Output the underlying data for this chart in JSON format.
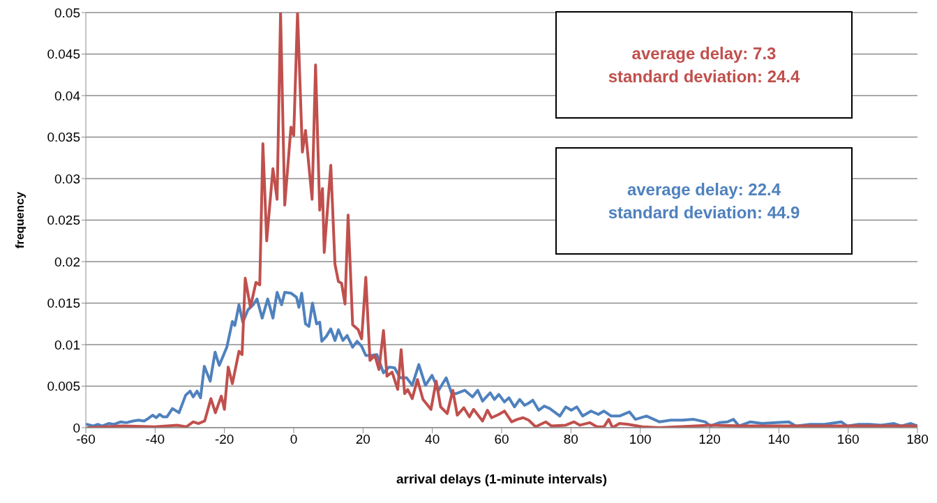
{
  "chart_data": {
    "type": "line",
    "xlabel": "arrival delays (1-minute intervals)",
    "ylabel": "frequency",
    "annotations": [
      "average delay: 7.3\nstandard deviation: 24.4",
      "average delay: 22.4\nstandard deviation: 44.9"
    ],
    "xlim": [
      -60,
      180
    ],
    "xticks": [
      -60,
      -40,
      -20,
      0,
      20,
      40,
      60,
      80,
      100,
      120,
      140,
      160,
      180
    ],
    "ylim": [
      0,
      0.05
    ],
    "yticks": [
      0,
      0.005,
      0.01,
      0.015,
      0.02,
      0.025,
      0.03,
      0.035,
      0.04,
      0.045,
      0.05
    ],
    "grid": "y",
    "legend": false,
    "series": [
      {
        "color": "#c0504d",
        "x": [
          -59.4,
          -49.6,
          -40,
          -33.7,
          -31,
          -29,
          -27.5,
          -25.7,
          -23.9,
          -22.6,
          -20.9,
          -20,
          -18.9,
          -17.7,
          -15.8,
          -14.9,
          -14,
          -12.5,
          -10.9,
          -9.8,
          -8.9,
          -7.8,
          -6,
          -4.8,
          -3.8,
          -2.6,
          -0.8,
          0,
          1.1,
          2.5,
          3.4,
          5.3,
          6.3,
          7.5,
          8.3,
          8.8,
          10.7,
          11.9,
          12.9,
          13.8,
          14.8,
          15.7,
          17,
          18.6,
          19.6,
          20.8,
          22,
          23.4,
          24.6,
          25.9,
          26.9,
          28.4,
          30,
          31,
          32,
          32.9,
          34.2,
          35.7,
          37.3,
          39.6,
          41.1,
          42.4,
          44.3,
          45.9,
          47.2,
          49.1,
          50.7,
          51.9,
          54.5,
          55.9,
          57.1,
          59.2,
          60.8,
          62.9,
          64.5,
          66.2,
          67.8,
          69.8,
          72.7,
          74.4,
          78.5,
          80.9,
          82.6,
          85.4,
          87.5,
          89.5,
          90.9,
          92,
          94,
          96.5,
          100.6,
          105.5,
          120.3,
          130.1,
          180
        ],
        "values": [
          0,
          0.0002,
          0.0001,
          0.0003,
          0.0001,
          0.0007,
          0.0005,
          0.0008,
          0.0035,
          0.0018,
          0.0038,
          0.0022,
          0.0073,
          0.0053,
          0.0092,
          0.0088,
          0.018,
          0.0145,
          0.0175,
          0.0172,
          0.0342,
          0.0225,
          0.0312,
          0.0275,
          0.05,
          0.0268,
          0.0362,
          0.0352,
          0.05,
          0.0332,
          0.0358,
          0.0275,
          0.0437,
          0.0262,
          0.0288,
          0.0211,
          0.0316,
          0.0197,
          0.0176,
          0.0174,
          0.0149,
          0.0256,
          0.0124,
          0.0118,
          0.0107,
          0.0181,
          0.0081,
          0.0087,
          0.007,
          0.0117,
          0.0062,
          0.0067,
          0.0046,
          0.0094,
          0.0041,
          0.0046,
          0.0035,
          0.0058,
          0.0034,
          0.0022,
          0.0056,
          0.0025,
          0.0017,
          0.0045,
          0.0015,
          0.0024,
          0.0013,
          0.0022,
          0.0008,
          0.0021,
          0.0012,
          0.0016,
          0.002,
          0.0007,
          0.001,
          0.0012,
          0.0009,
          0.0001,
          0.0007,
          0.0002,
          0.0003,
          0.0007,
          0.0003,
          0.0006,
          0.0001,
          0.0001,
          0.001,
          0,
          0.0005,
          0.0004,
          0.0001,
          0,
          0.0003,
          0.0002,
          0.0002
        ]
      },
      {
        "color": "#4f81bd",
        "x": [
          -59.7,
          -57.8,
          -56.5,
          -55.3,
          -53.4,
          -51.8,
          -49.9,
          -48.3,
          -46.4,
          -44.8,
          -43.2,
          -42,
          -40.7,
          -39.7,
          -38.7,
          -37.7,
          -36.6,
          -35,
          -33.1,
          -31.2,
          -29.9,
          -29,
          -27.9,
          -26.9,
          -25.8,
          -24.1,
          -22.7,
          -21.5,
          -19.3,
          -17.7,
          -17,
          -15.8,
          -14.7,
          -13.2,
          -11.7,
          -10.6,
          -9.1,
          -7.5,
          -6,
          -4.8,
          -3.5,
          -2.6,
          -0.8,
          0.8,
          1.5,
          2.3,
          3.4,
          4.4,
          5.4,
          6.6,
          7.5,
          8.1,
          9.4,
          10.7,
          11.9,
          12.9,
          14.2,
          15.4,
          17,
          18.3,
          19.6,
          20.8,
          22.4,
          24,
          25.9,
          27.5,
          29.1,
          30.7,
          32.6,
          34.2,
          36.1,
          38,
          39.9,
          41.8,
          44,
          45.6,
          46.9,
          49.4,
          51.6,
          53.1,
          54.5,
          56.7,
          57.9,
          59.2,
          60.8,
          62.1,
          63.7,
          65.2,
          66.6,
          67.6,
          69,
          70.7,
          72.3,
          73.9,
          76.8,
          78.5,
          80.1,
          81.7,
          83.4,
          85.8,
          87.9,
          89.5,
          91.6,
          94,
          96.9,
          98.6,
          101.8,
          105.5,
          108.8,
          112.1,
          115.4,
          118.7,
          120.3,
          122.8,
          125.2,
          126.9,
          128.5,
          131.8,
          135.1,
          139.2,
          142.9,
          144.9,
          149,
          153.1,
          158,
          159.7,
          163,
          166.2,
          169.5,
          173.2,
          175.3,
          178.1,
          180
        ],
        "values": [
          0.0004,
          0.0002,
          0.0004,
          0.0002,
          0.0005,
          0.0004,
          0.0007,
          0.0006,
          0.0008,
          0.0009,
          0.0008,
          0.0011,
          0.0015,
          0.0012,
          0.0016,
          0.0013,
          0.0013,
          0.0023,
          0.0018,
          0.0039,
          0.0044,
          0.0037,
          0.0044,
          0.0036,
          0.0074,
          0.0056,
          0.0091,
          0.0075,
          0.0097,
          0.0128,
          0.0123,
          0.0148,
          0.0127,
          0.0142,
          0.0148,
          0.0155,
          0.0132,
          0.0155,
          0.0132,
          0.0163,
          0.0148,
          0.0163,
          0.0162,
          0.0157,
          0.0145,
          0.0162,
          0.0125,
          0.0122,
          0.015,
          0.0125,
          0.0127,
          0.0104,
          0.011,
          0.0119,
          0.0105,
          0.0118,
          0.0105,
          0.0111,
          0.0097,
          0.0104,
          0.0098,
          0.0087,
          0.0087,
          0.0088,
          0.0066,
          0.0073,
          0.0072,
          0.006,
          0.006,
          0.0051,
          0.0076,
          0.0051,
          0.0063,
          0.0045,
          0.006,
          0.0041,
          0.0041,
          0.0045,
          0.0037,
          0.0045,
          0.0032,
          0.0042,
          0.0034,
          0.004,
          0.0031,
          0.0036,
          0.0025,
          0.0034,
          0.0027,
          0.0029,
          0.0033,
          0.0021,
          0.0026,
          0.0023,
          0.0014,
          0.0025,
          0.0021,
          0.0025,
          0.0014,
          0.002,
          0.0016,
          0.002,
          0.0014,
          0.0014,
          0.0019,
          0.001,
          0.0014,
          0.0007,
          0.0009,
          0.0009,
          0.001,
          0.0007,
          0.0002,
          0.0006,
          0.0007,
          0.001,
          0.0002,
          0.0007,
          0.0005,
          0.0006,
          0.0007,
          0.0002,
          0.0004,
          0.0004,
          0.0007,
          0.0002,
          0.0004,
          0.0004,
          0.0003,
          0.0005,
          0.0002,
          0.0005,
          0.0002
        ]
      }
    ]
  }
}
